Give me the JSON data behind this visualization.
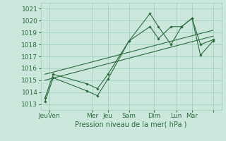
{
  "x_label": "Pression niveau de la mer( hPa )",
  "ylim": [
    1012.5,
    1021.5
  ],
  "yticks": [
    1013,
    1014,
    1015,
    1016,
    1017,
    1018,
    1019,
    1020,
    1021
  ],
  "background_color": "#cce8dc",
  "grid_color": "#99ccbb",
  "line_color": "#2d6a3f",
  "tick_fontsize": 6.5,
  "xlabel_fontsize": 7,
  "line1_x": [
    0,
    0.4,
    2.0,
    2.5,
    3.0,
    4.0,
    5.0,
    5.4,
    6.0,
    6.5,
    7.0,
    7.4,
    8.0
  ],
  "line1_y": [
    1013.2,
    1015.2,
    1014.1,
    1013.7,
    1015.1,
    1018.3,
    1020.6,
    1019.5,
    1018.0,
    1019.5,
    1020.2,
    1017.1,
    1018.3
  ],
  "line2_x": [
    0,
    0.4,
    2.0,
    2.5,
    3.0,
    4.0,
    5.0,
    5.4,
    6.0,
    6.5,
    7.0,
    7.4,
    8.0
  ],
  "line2_y": [
    1013.5,
    1015.5,
    1014.7,
    1014.3,
    1015.5,
    1018.3,
    1019.5,
    1018.5,
    1019.5,
    1019.5,
    1020.2,
    1018.0,
    1018.4
  ],
  "trend1_x": [
    0,
    8.0
  ],
  "trend1_y": [
    1015.0,
    1018.7
  ],
  "trend2_x": [
    0,
    8.0
  ],
  "trend2_y": [
    1015.5,
    1019.2
  ],
  "xtick_positions": [
    0.2,
    2.25,
    3.0,
    4.0,
    5.2,
    6.25,
    7.0,
    8.0
  ],
  "xtick_labels": [
    "JeuVen",
    "Mer",
    "Jeu",
    "Sam",
    "Dim",
    "Lun",
    "Mar",
    ""
  ],
  "xlim": [
    -0.2,
    8.4
  ]
}
